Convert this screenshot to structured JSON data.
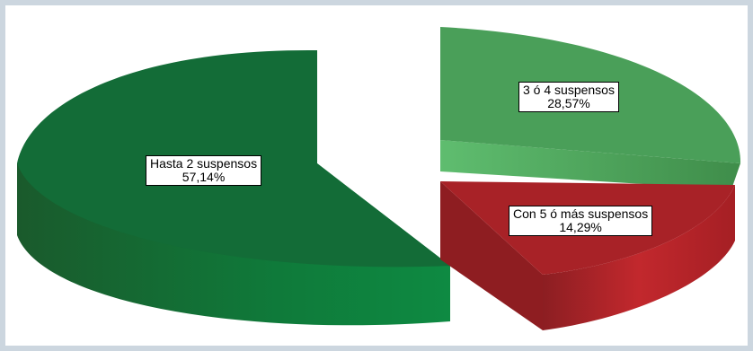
{
  "chart_data": {
    "type": "pie",
    "style": "3d-exploded",
    "slices": [
      {
        "label": "Hasta 2 suspensos",
        "value": 57.14,
        "display": "57,14%",
        "color": "#136c37"
      },
      {
        "label": "3 ó 4 suspensos",
        "value": 28.57,
        "display": "28,57%",
        "color": "#4a9f59"
      },
      {
        "label": "Con 5 ó más suspensos",
        "value": 14.29,
        "display": "14,29%",
        "color": "#a82227"
      }
    ],
    "title": "",
    "legend": "none",
    "data_labels": "inside, boxed"
  }
}
